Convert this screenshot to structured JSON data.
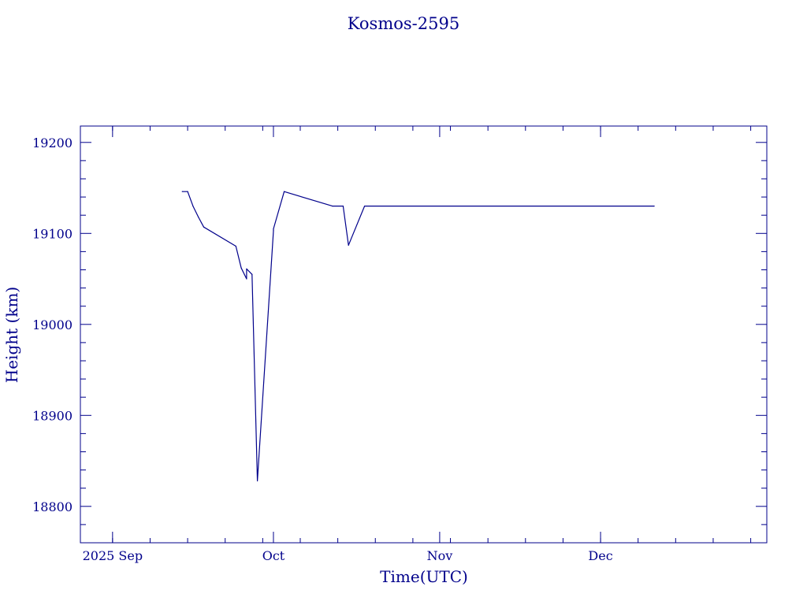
{
  "colors": {
    "ink": "#00008b",
    "background": "#ffffff"
  },
  "chart_data": {
    "type": "line",
    "title": "Kosmos-2595",
    "xlabel": "Time(UTC)",
    "ylabel": "Height (km)",
    "xlim": [
      "2025-08-26",
      "2026-01-01"
    ],
    "ylim": [
      18760,
      19218
    ],
    "x_ticks": [
      {
        "date": "2025-09-01",
        "label": "2025 Sep"
      },
      {
        "date": "2025-10-01",
        "label": "Oct"
      },
      {
        "date": "2025-11-01",
        "label": "Nov"
      },
      {
        "date": "2025-12-01",
        "label": "Dec"
      }
    ],
    "y_ticks": [
      {
        "value": 18800,
        "label": "18800"
      },
      {
        "value": 18900,
        "label": "18900"
      },
      {
        "value": 19000,
        "label": "19000"
      },
      {
        "value": 19100,
        "label": "19100"
      },
      {
        "value": 19200,
        "label": "19200"
      }
    ],
    "grid": false,
    "legend": "none",
    "series": [
      {
        "points": [
          [
            "2025-09-14",
            19146
          ],
          [
            "2025-09-15",
            19146
          ],
          [
            "2025-09-16",
            19130
          ],
          [
            "2025-09-17",
            19118
          ],
          [
            "2025-09-18",
            19107
          ],
          [
            "2025-09-24",
            19086
          ],
          [
            "2025-09-25",
            19062
          ],
          [
            "2025-09-26",
            19050
          ],
          [
            "2025-09-26",
            19061
          ],
          [
            "2025-09-27",
            19055
          ],
          [
            "2025-09-28",
            18828
          ],
          [
            "2025-10-01",
            19103
          ],
          [
            "2025-10-01",
            19105
          ],
          [
            "2025-10-03",
            19146
          ],
          [
            "2025-10-12",
            19130
          ],
          [
            "2025-10-14",
            19130
          ],
          [
            "2025-10-15",
            19087
          ],
          [
            "2025-10-18",
            19130
          ],
          [
            "2025-12-11",
            19130
          ]
        ]
      }
    ]
  }
}
